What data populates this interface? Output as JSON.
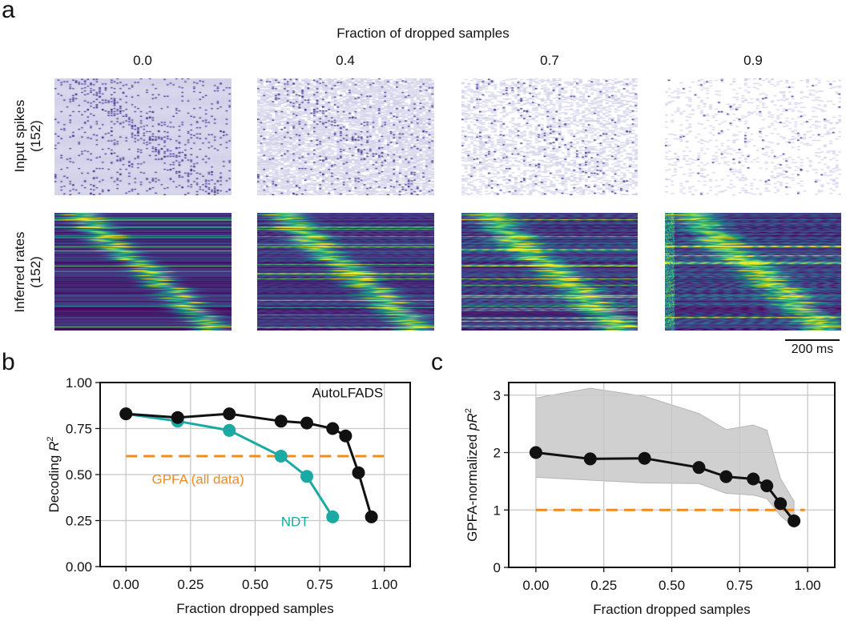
{
  "panel_a": {
    "label": "a",
    "title": "Fraction of dropped samples",
    "columns": [
      "0.0",
      "0.4",
      "0.7",
      "0.9"
    ],
    "drop_fractions": [
      0.0,
      0.4,
      0.7,
      0.9
    ],
    "row_labels": [
      {
        "line1": "Input spikes",
        "line2": "(152)"
      },
      {
        "line1": "Inferred rates",
        "line2": "(152)"
      }
    ],
    "scale_bar": "200 ms",
    "colors": {
      "mask": "#d3d2ea",
      "spike": "#3b2f8f",
      "colormap": "viridis"
    }
  },
  "chart_data": [
    {
      "panel": "b",
      "type": "line",
      "xlabel": "Fraction dropped samples",
      "ylabel": "Decoding R²",
      "ylabel_parts": {
        "text": "Decoding ",
        "var": "R",
        "sup": "2"
      },
      "xlim": [
        -0.1,
        1.1
      ],
      "ylim": [
        0,
        1.0
      ],
      "xticks": [
        "0.00",
        "0.25",
        "0.50",
        "0.75",
        "1.00"
      ],
      "yticks": [
        "0.00",
        "0.25",
        "0.50",
        "0.75",
        "1.00"
      ],
      "grid": true,
      "series": [
        {
          "name": "AutoLFADS",
          "color": "#111111",
          "x": [
            0,
            0.2,
            0.4,
            0.6,
            0.7,
            0.8,
            0.85,
            0.9,
            0.95
          ],
          "y": [
            0.83,
            0.81,
            0.83,
            0.79,
            0.78,
            0.75,
            0.71,
            0.51,
            0.27
          ]
        },
        {
          "name": "NDT",
          "color": "#1aa9a3",
          "x": [
            0,
            0.2,
            0.4,
            0.6,
            0.7,
            0.8
          ],
          "y": [
            0.83,
            0.79,
            0.74,
            0.6,
            0.49,
            0.27
          ]
        },
        {
          "name": "GPFA (all data)",
          "color": "#f08c1e",
          "style": "dashed",
          "x": [
            0,
            1.0
          ],
          "y": [
            0.6,
            0.6
          ]
        }
      ]
    },
    {
      "panel": "c",
      "type": "line",
      "xlabel": "Fraction dropped samples",
      "ylabel_parts": {
        "text": "GPFA-normalized ",
        "var": "pR",
        "sup": "2"
      },
      "xlim": [
        -0.1,
        1.1
      ],
      "ylim": [
        0,
        3.22
      ],
      "xticks": [
        "0.00",
        "0.25",
        "0.50",
        "0.75",
        "1.00"
      ],
      "yticks": [
        "0",
        "1",
        "2",
        "3"
      ],
      "grid": true,
      "series": [
        {
          "color": "#111111",
          "x": [
            0,
            0.2,
            0.4,
            0.6,
            0.7,
            0.8,
            0.85,
            0.9,
            0.95
          ],
          "y": [
            2.0,
            1.89,
            1.9,
            1.74,
            1.58,
            1.54,
            1.42,
            1.11,
            0.81
          ],
          "band_upper": [
            2.95,
            3.12,
            2.98,
            2.68,
            2.4,
            2.48,
            2.39,
            1.55,
            1.15
          ],
          "band_lower": [
            1.57,
            1.52,
            1.47,
            1.46,
            1.29,
            1.26,
            1.2,
            0.9,
            0.7
          ],
          "band_color": "#d0d0d0"
        },
        {
          "color": "#f08c1e",
          "style": "dashed",
          "x": [
            0,
            0.99
          ],
          "y": [
            1,
            1
          ]
        }
      ]
    }
  ]
}
